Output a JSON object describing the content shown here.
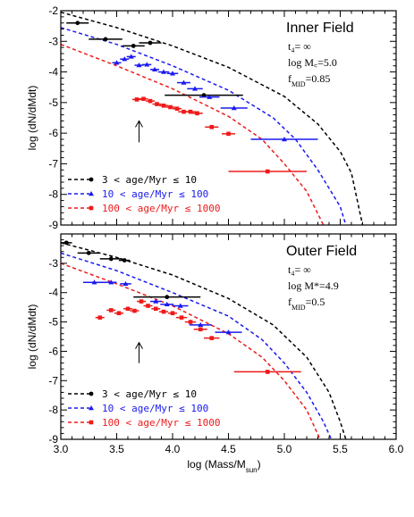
{
  "chart_data": [
    {
      "type": "scatter",
      "panel": "top",
      "xlim": [
        3.0,
        6.0
      ],
      "ylim": [
        -9,
        -2
      ],
      "ylabel": "log (dN/dMdt)",
      "xticks": [
        "3.0",
        "3.5",
        "4.0",
        "4.5",
        "5.0",
        "5.5",
        "6.0"
      ],
      "yticks": [
        "-2",
        "-3",
        "-4",
        "-5",
        "-6",
        "-7",
        "-8",
        "-9"
      ],
      "annotation": {
        "title": "Inner Field",
        "line1": "t₄= ∞",
        "line2": "log  M꜀=5.0",
        "line3": "f_MID=0.85"
      },
      "arrow": {
        "x": 3.7,
        "y_tail": -6.3,
        "y_head": -5.6
      },
      "series": [
        {
          "name": "3 < age/Myr ≤ 10",
          "color": "#000000",
          "marker": "circle",
          "points": [
            {
              "x": 3.15,
              "y": -2.4,
              "xerr": 0.1
            },
            {
              "x": 3.4,
              "y": -2.93,
              "xerr": 0.15
            },
            {
              "x": 3.65,
              "y": -3.15,
              "xerr": 0.1
            },
            {
              "x": 3.8,
              "y": -3.05,
              "xerr": 0.1
            },
            {
              "x": 4.28,
              "y": -4.76,
              "xerr": 0.35
            }
          ],
          "model_curve": [
            [
              3.0,
              -2.05
            ],
            [
              3.5,
              -2.55
            ],
            [
              4.0,
              -3.15
            ],
            [
              4.5,
              -3.85
            ],
            [
              5.0,
              -4.8
            ],
            [
              5.3,
              -5.7
            ],
            [
              5.5,
              -6.6
            ],
            [
              5.6,
              -7.3
            ],
            [
              5.7,
              -9.0
            ]
          ]
        },
        {
          "name": "10 < age/Myr ≤ 100",
          "color": "#1a1aee",
          "marker": "triangle",
          "points": [
            {
              "x": 3.5,
              "y": -3.7,
              "xerr": 0.04
            },
            {
              "x": 3.57,
              "y": -3.58,
              "xerr": 0.04
            },
            {
              "x": 3.63,
              "y": -3.5,
              "xerr": 0.04
            },
            {
              "x": 3.7,
              "y": -3.78,
              "xerr": 0.04
            },
            {
              "x": 3.77,
              "y": -3.76,
              "xerr": 0.04
            },
            {
              "x": 3.84,
              "y": -3.92,
              "xerr": 0.04
            },
            {
              "x": 3.92,
              "y": -4.0,
              "xerr": 0.05
            },
            {
              "x": 4.0,
              "y": -4.05,
              "xerr": 0.05
            },
            {
              "x": 4.1,
              "y": -4.35,
              "xerr": 0.06
            },
            {
              "x": 4.2,
              "y": -4.55,
              "xerr": 0.07
            },
            {
              "x": 4.33,
              "y": -4.82,
              "xerr": 0.09
            },
            {
              "x": 4.55,
              "y": -5.18,
              "xerr": 0.12
            },
            {
              "x": 5.0,
              "y": -6.2,
              "xerr": 0.3
            }
          ],
          "model_curve": [
            [
              3.0,
              -2.55
            ],
            [
              3.5,
              -3.1
            ],
            [
              4.0,
              -3.8
            ],
            [
              4.5,
              -4.6
            ],
            [
              4.9,
              -5.5
            ],
            [
              5.1,
              -6.2
            ],
            [
              5.3,
              -7.2
            ],
            [
              5.5,
              -8.4
            ],
            [
              5.55,
              -9.0
            ]
          ]
        },
        {
          "name": "100 < age/Myr ≤ 1000",
          "color": "#ee1a1a",
          "marker": "square",
          "points": [
            {
              "x": 3.68,
              "y": -4.9,
              "xerr": 0.04
            },
            {
              "x": 3.74,
              "y": -4.88,
              "xerr": 0.04
            },
            {
              "x": 3.8,
              "y": -4.95,
              "xerr": 0.04
            },
            {
              "x": 3.86,
              "y": -5.05,
              "xerr": 0.04
            },
            {
              "x": 3.92,
              "y": -5.1,
              "xerr": 0.04
            },
            {
              "x": 3.98,
              "y": -5.15,
              "xerr": 0.04
            },
            {
              "x": 4.04,
              "y": -5.2,
              "xerr": 0.04
            },
            {
              "x": 4.1,
              "y": -5.3,
              "xerr": 0.05
            },
            {
              "x": 4.16,
              "y": -5.3,
              "xerr": 0.05
            },
            {
              "x": 4.22,
              "y": -5.35,
              "xerr": 0.05
            },
            {
              "x": 4.35,
              "y": -5.8,
              "xerr": 0.06
            },
            {
              "x": 4.5,
              "y": -6.02,
              "xerr": 0.06
            },
            {
              "x": 4.85,
              "y": -7.25,
              "xerr": 0.35
            }
          ],
          "model_curve": [
            [
              3.0,
              -3.1
            ],
            [
              3.5,
              -3.8
            ],
            [
              4.0,
              -4.55
            ],
            [
              4.5,
              -5.45
            ],
            [
              4.8,
              -6.2
            ],
            [
              5.0,
              -7.0
            ],
            [
              5.2,
              -7.9
            ],
            [
              5.35,
              -9.0
            ]
          ]
        }
      ]
    },
    {
      "type": "scatter",
      "panel": "bottom",
      "xlim": [
        3.0,
        6.0
      ],
      "ylim": [
        -9,
        -2
      ],
      "xlabel": "log (Mass/M_sun)",
      "ylabel": "log (dN/dMdt)",
      "xticks": [
        "3.0",
        "3.5",
        "4.0",
        "4.5",
        "5.0",
        "5.5",
        "6.0"
      ],
      "yticks": [
        "-3",
        "-4",
        "-5",
        "-6",
        "-7",
        "-8",
        "-9"
      ],
      "annotation": {
        "title": "Outer Field",
        "line1": "t₄= ∞",
        "line2": "log  M*=4.9",
        "line3": "f_MID=0.5"
      },
      "arrow": {
        "x": 3.7,
        "y_tail": -6.4,
        "y_head": -5.7
      },
      "series": [
        {
          "name": "3 < age/Myr ≤ 10",
          "color": "#000000",
          "marker": "circle",
          "points": [
            {
              "x": 3.05,
              "y": -2.3,
              "xerr": 0.05
            },
            {
              "x": 3.25,
              "y": -2.65,
              "xerr": 0.1
            },
            {
              "x": 3.45,
              "y": -2.85,
              "xerr": 0.1
            },
            {
              "x": 3.57,
              "y": -2.9,
              "xerr": 0.05
            },
            {
              "x": 3.95,
              "y": -4.15,
              "xerr": 0.3
            }
          ],
          "model_curve": [
            [
              3.0,
              -2.3
            ],
            [
              3.5,
              -2.8
            ],
            [
              4.0,
              -3.4
            ],
            [
              4.5,
              -4.2
            ],
            [
              4.9,
              -5.1
            ],
            [
              5.2,
              -6.2
            ],
            [
              5.4,
              -7.4
            ],
            [
              5.5,
              -8.4
            ],
            [
              5.55,
              -9.0
            ]
          ]
        },
        {
          "name": "10 < age/Myr ≤ 100",
          "color": "#1a1aee",
          "marker": "triangle",
          "points": [
            {
              "x": 3.3,
              "y": -3.65,
              "xerr": 0.1
            },
            {
              "x": 3.45,
              "y": -3.65,
              "xerr": 0.05
            },
            {
              "x": 3.58,
              "y": -3.7,
              "xerr": 0.05
            },
            {
              "x": 3.85,
              "y": -4.3,
              "xerr": 0.05
            },
            {
              "x": 3.95,
              "y": -4.4,
              "xerr": 0.06
            },
            {
              "x": 4.07,
              "y": -4.45,
              "xerr": 0.07
            },
            {
              "x": 4.25,
              "y": -5.1,
              "xerr": 0.1
            },
            {
              "x": 4.5,
              "y": -5.35,
              "xerr": 0.12
            }
          ],
          "model_curve": [
            [
              3.0,
              -2.65
            ],
            [
              3.5,
              -3.25
            ],
            [
              4.0,
              -4.0
            ],
            [
              4.5,
              -4.8
            ],
            [
              4.8,
              -5.6
            ],
            [
              5.0,
              -6.4
            ],
            [
              5.2,
              -7.4
            ],
            [
              5.35,
              -8.4
            ],
            [
              5.42,
              -9.0
            ]
          ]
        },
        {
          "name": "100 < age/Myr ≤ 1000",
          "color": "#ee1a1a",
          "marker": "square",
          "points": [
            {
              "x": 3.35,
              "y": -4.85,
              "xerr": 0.04
            },
            {
              "x": 3.45,
              "y": -4.6,
              "xerr": 0.04
            },
            {
              "x": 3.52,
              "y": -4.7,
              "xerr": 0.04
            },
            {
              "x": 3.6,
              "y": -4.55,
              "xerr": 0.04
            },
            {
              "x": 3.66,
              "y": -4.62,
              "xerr": 0.04
            },
            {
              "x": 3.72,
              "y": -4.3,
              "xerr": 0.04
            },
            {
              "x": 3.78,
              "y": -4.45,
              "xerr": 0.04
            },
            {
              "x": 3.85,
              "y": -4.55,
              "xerr": 0.04
            },
            {
              "x": 3.92,
              "y": -4.65,
              "xerr": 0.04
            },
            {
              "x": 4.0,
              "y": -4.7,
              "xerr": 0.04
            },
            {
              "x": 4.08,
              "y": -4.85,
              "xerr": 0.05
            },
            {
              "x": 4.16,
              "y": -5.0,
              "xerr": 0.05
            },
            {
              "x": 4.25,
              "y": -5.25,
              "xerr": 0.06
            },
            {
              "x": 4.35,
              "y": -5.55,
              "xerr": 0.07
            },
            {
              "x": 4.85,
              "y": -6.7,
              "xerr": 0.3
            }
          ],
          "model_curve": [
            [
              3.0,
              -3.0
            ],
            [
              3.5,
              -3.7
            ],
            [
              4.0,
              -4.45
            ],
            [
              4.5,
              -5.4
            ],
            [
              4.8,
              -6.2
            ],
            [
              5.0,
              -7.0
            ],
            [
              5.2,
              -8.0
            ],
            [
              5.32,
              -9.0
            ]
          ]
        }
      ]
    }
  ]
}
